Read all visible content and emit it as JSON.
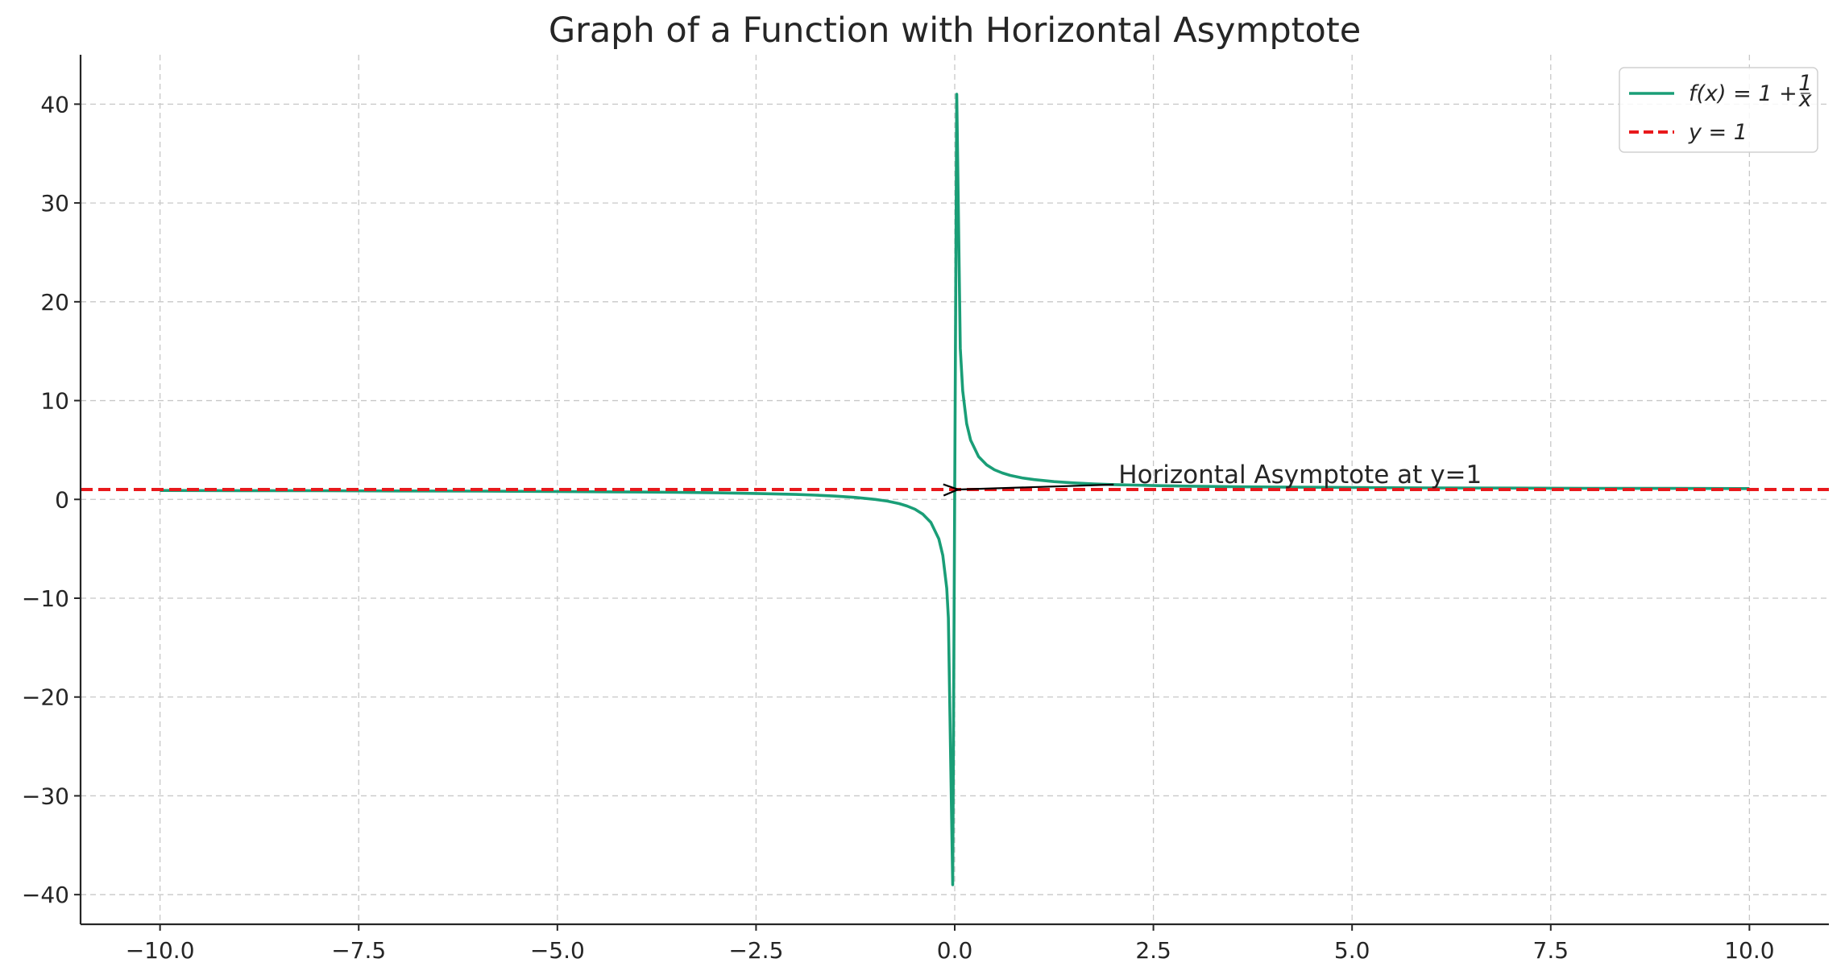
{
  "chart_data": {
    "type": "line",
    "title": "Graph of a Function with Horizontal Asymptote",
    "xlabel": "",
    "ylabel": "",
    "xlim": [
      -11.0,
      11.0
    ],
    "ylim": [
      -43.0,
      45.0
    ],
    "grid": true,
    "legend_position": "top-right",
    "x_ticks": [
      -10.0,
      -7.5,
      -5.0,
      -2.5,
      0.0,
      2.5,
      5.0,
      7.5,
      10.0
    ],
    "x_tick_labels": [
      "−10.0",
      "−7.5",
      "−5.0",
      "−2.5",
      "0.0",
      "2.5",
      "5.0",
      "7.5",
      "10.0"
    ],
    "y_ticks": [
      -40,
      -30,
      -20,
      -10,
      0,
      10,
      20,
      30,
      40
    ],
    "y_tick_labels": [
      "−40",
      "−30",
      "−20",
      "−10",
      "0",
      "10",
      "20",
      "30",
      "40"
    ],
    "series": [
      {
        "name": "f(x) = 1 + 1/x",
        "legend_label": "f(x) = 1 + ",
        "legend_fraction": {
          "numerator": "1",
          "denominator": "x"
        },
        "style": "solid",
        "color": "#1a9e77",
        "x": [
          -10.0,
          -9.0,
          -8.0,
          -7.0,
          -6.0,
          -5.0,
          -4.0,
          -3.5,
          -3.0,
          -2.5,
          -2.0,
          -1.75,
          -1.5,
          -1.25,
          -1.0,
          -0.85,
          -0.7,
          -0.6,
          -0.5,
          -0.4,
          -0.3,
          -0.2,
          -0.15,
          -0.1,
          -0.08,
          -0.025,
          0.025,
          0.07,
          0.1,
          0.15,
          0.2,
          0.3,
          0.4,
          0.5,
          0.6,
          0.7,
          0.85,
          1.0,
          1.25,
          1.5,
          1.75,
          2.0,
          2.5,
          3.0,
          3.5,
          4.0,
          5.0,
          6.0,
          7.0,
          8.0,
          9.0,
          10.0
        ],
        "y": [
          0.9,
          0.889,
          0.875,
          0.857,
          0.833,
          0.8,
          0.75,
          0.714,
          0.667,
          0.6,
          0.5,
          0.429,
          0.333,
          0.2,
          0.0,
          -0.176,
          -0.429,
          -0.667,
          -1.0,
          -1.5,
          -2.333,
          -4.0,
          -5.667,
          -9.0,
          -12.0,
          -39.0,
          41.0,
          15.286,
          11.0,
          7.667,
          6.0,
          4.333,
          3.5,
          3.0,
          2.667,
          2.429,
          2.176,
          2.0,
          1.8,
          1.667,
          1.571,
          1.5,
          1.4,
          1.333,
          1.286,
          1.25,
          1.2,
          1.167,
          1.143,
          1.125,
          1.111,
          1.1
        ]
      },
      {
        "name": "y = 1",
        "legend_label": "y = 1",
        "style": "dashed",
        "color": "#e8191c",
        "x": [
          -11.0,
          11.0
        ],
        "y": [
          1,
          1
        ]
      }
    ],
    "annotations": [
      {
        "text": "Horizontal Asymptote at y=1",
        "xy": [
          0.0,
          1.0
        ],
        "xytext": [
          2.0,
          1.5
        ],
        "arrow": true
      }
    ]
  }
}
